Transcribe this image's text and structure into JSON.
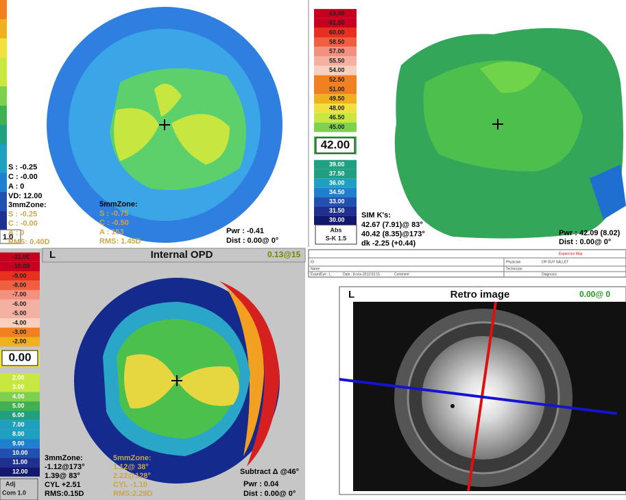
{
  "corneal_map": {
    "scale_label": "1.0",
    "readouts": [
      "S : -0.25",
      "C : -0.00",
      "A : 0",
      "VD: 12.00"
    ],
    "zone_3mm": {
      "title": "3mmZone:",
      "lines": [
        "S : -0.25",
        "C : -0.00",
        "A : 0",
        "RMS: 0.40D"
      ]
    },
    "zone_5mm": {
      "title": "5mmZone:",
      "lines": [
        "S : -0.75",
        "C : -0.50",
        "A : 153",
        "RMS: 1.45D"
      ]
    },
    "pwr": "Pwr : -0.41",
    "dist": "Dist : 0.00@ 0°"
  },
  "axial_map": {
    "scale_top": [
      "63.00",
      "61.50",
      "60.00",
      "58.50",
      "57.00",
      "55.50",
      "54.00",
      "52.50",
      "51.00",
      "49.50",
      "48.00",
      "46.50",
      "45.00"
    ],
    "scale_center": "42.00",
    "scale_bottom": [
      "39.00",
      "37.50",
      "36.00",
      "34.50",
      "33.00",
      "31.50",
      "30.00"
    ],
    "scale_mode": "Abs",
    "scale_step": "S-K 1.5",
    "sim_k": {
      "title": "SIM K's:",
      "lines": [
        "42.67 (7.91)@ 83°",
        "40.42 (8.35)@173°",
        "dk -2.25 (+0.44)"
      ]
    },
    "pwr": "Pwr : 42.09 (8.02)",
    "dist": "Dist : 0.00@ 0°"
  },
  "internal_opd": {
    "eye": "L",
    "title": "Internal OPD",
    "value": "0.13@15",
    "scale_top": [
      "-11.00",
      "-10.00",
      "-9.00",
      "-8.00",
      "-7.00",
      "-6.00",
      "-5.00",
      "-4.00",
      "-3.00",
      "-2.00"
    ],
    "scale_center": "0.00",
    "scale_bottom": [
      "2.00",
      "3.00",
      "4.00",
      "5.00",
      "6.00",
      "7.00",
      "8.00",
      "9.00",
      "10.00",
      "11.00",
      "12.00"
    ],
    "scale_mode": "Adj",
    "scale_step": "Com 1.0",
    "zone_3mm": {
      "title": "3mmZone:",
      "lines": [
        "-1.12@173°",
        "1.39@ 83°",
        "CYL +2.51",
        "RMS:0.15D"
      ]
    },
    "zone_5mm": {
      "title": "5mmZone:",
      "lines": [
        "1.12@ 38°",
        "2.22@128°",
        "CYL -1.10",
        "RMS:2.29D"
      ]
    },
    "subtract": "Subtract Δ @46°",
    "pwr": "Pwr : 0.04",
    "dist": "Dist : 0.00@ 0°"
  },
  "report_header": {
    "map_type": "Expansion Map",
    "id": "ID",
    "name": "Name",
    "exam_eye": "Exam/Eye : L",
    "date": "Date : 8-nov-2013 03:15",
    "comment": "Comment",
    "physician": "Physician",
    "physician_name": "DR GUY SALLET",
    "technician": "Technician",
    "diagnosis": "Diagnosis"
  },
  "retro_image": {
    "eye": "L",
    "title": "Retro image",
    "value": "0.00@ 0"
  }
}
